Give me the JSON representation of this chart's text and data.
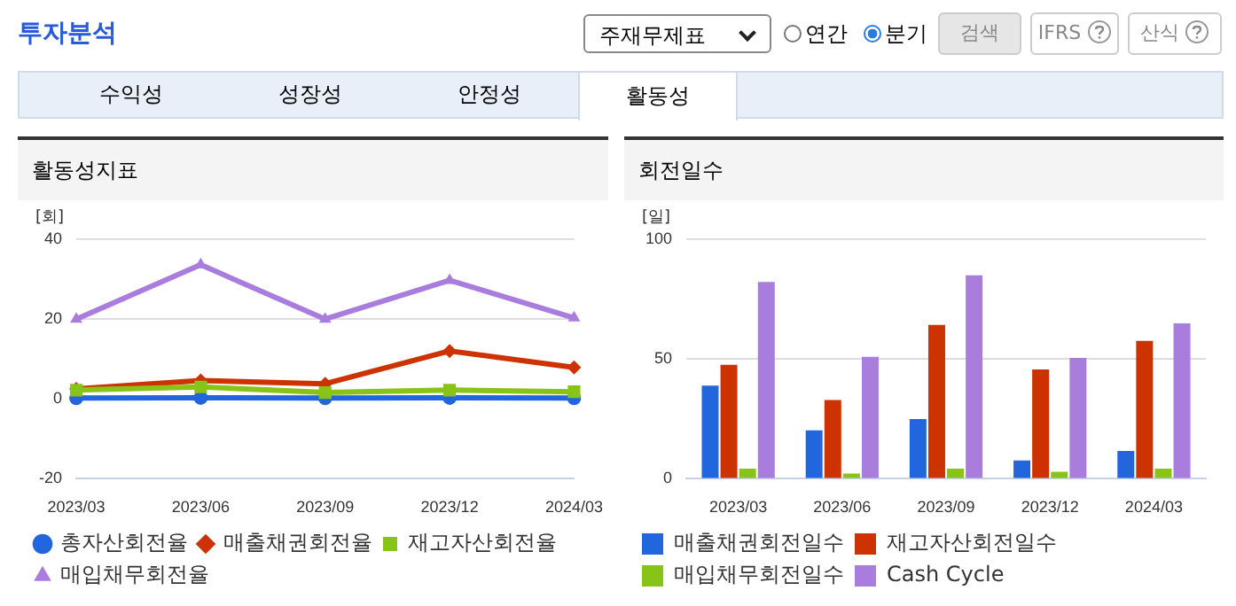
{
  "chart_data": [
    {
      "type": "other",
      "title": "투자분석",
      "annotations": [
        "주재무제표",
        "연간",
        "분기",
        "검색",
        "IFRS",
        "산식",
        "수익성",
        "성장성",
        "안정성",
        "활동성"
      ]
    },
    {
      "type": "line",
      "title": "활동성지표",
      "ylabel": "[회]",
      "categories": [
        "2023/03",
        "2023/06",
        "2023/09",
        "2023/12",
        "2024/03"
      ],
      "ylim": [
        -20,
        40
      ],
      "yticks": [
        -20,
        0,
        20,
        40
      ],
      "grid": "y",
      "legend": "bottom",
      "line_style": "solid",
      "series": [
        {
          "name": "총자산회전율",
          "color": "#2266dd",
          "marker": "circle",
          "values": [
            0.2,
            0.3,
            0.2,
            0.3,
            0.2
          ]
        },
        {
          "name": "매출채권회전율",
          "color": "#cc3300",
          "marker": "diamond",
          "values": [
            2.5,
            4.6,
            3.8,
            12.0,
            7.9
          ]
        },
        {
          "name": "재고자산회전율",
          "color": "#88c417",
          "marker": "square",
          "values": [
            2.2,
            3.0,
            1.6,
            2.2,
            1.8
          ]
        },
        {
          "name": "매입채무회전율",
          "color": "#a97ddd",
          "marker": "triangle",
          "values": [
            20.0,
            33.6,
            20.0,
            29.7,
            20.3
          ]
        }
      ]
    },
    {
      "type": "bar",
      "title": "회전일수",
      "ylabel": "[일]",
      "categories": [
        "2023/03",
        "2023/06",
        "2023/09",
        "2023/12",
        "2024/03"
      ],
      "ylim": [
        0,
        100
      ],
      "yticks": [
        0,
        50,
        100
      ],
      "grid": "y",
      "legend": "bottom",
      "series": [
        {
          "name": "매출채권회전일수",
          "color": "#2266dd",
          "values": [
            38.9,
            20.2,
            24.9,
            7.6,
            11.6
          ]
        },
        {
          "name": "재고자산회전일수",
          "color": "#cc3300",
          "values": [
            47.6,
            32.9,
            64.2,
            45.6,
            57.6
          ]
        },
        {
          "name": "매입채무회전일수",
          "color": "#88c417",
          "values": [
            4.2,
            2.2,
            4.2,
            2.9,
            4.2
          ]
        },
        {
          "name": "Cash Cycle",
          "color": "#a97ddd",
          "values": [
            82.2,
            50.9,
            84.9,
            50.4,
            64.9
          ]
        }
      ]
    }
  ]
}
